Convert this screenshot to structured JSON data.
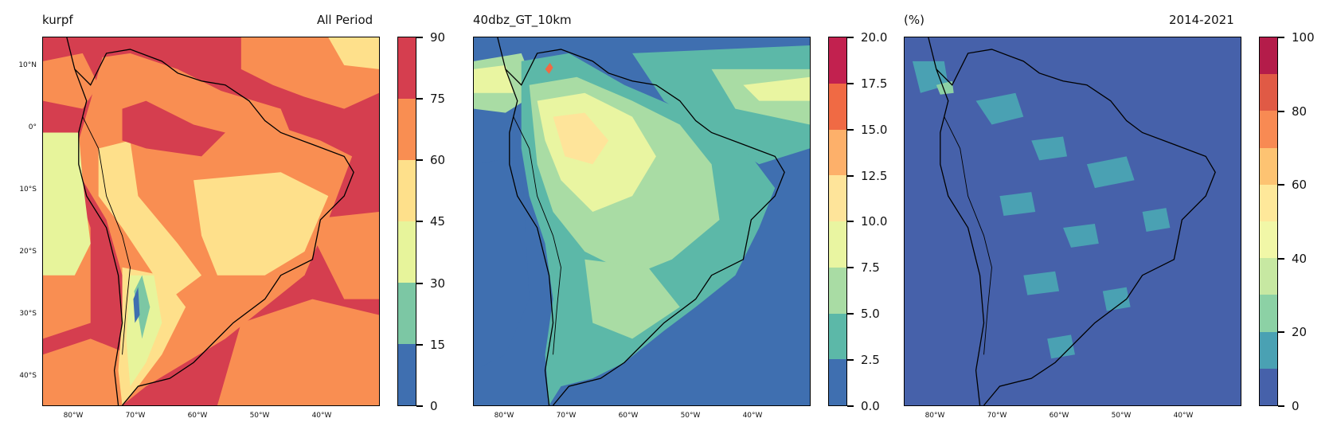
{
  "panels": [
    {
      "title_left": "kurpf",
      "title_right": "All Period",
      "colorbar": {
        "ticks": [
          "0",
          "15",
          "30",
          "45",
          "60",
          "75",
          "90"
        ],
        "colors": [
          "#3f6fb0",
          "#7cc7a4",
          "#e7f49b",
          "#fee08b",
          "#f98e52",
          "#d53e4f"
        ]
      },
      "ocean_color": "#f46d43",
      "land_color": "#fee08b"
    },
    {
      "title_left": "40dbz_GT_10km",
      "title_right": "",
      "colorbar": {
        "ticks": [
          "0.0",
          "2.5",
          "5.0",
          "7.5",
          "10.0",
          "12.5",
          "15.0",
          "17.5",
          "20.0"
        ],
        "colors": [
          "#3f6fb0",
          "#5cb8a8",
          "#a9dca4",
          "#e9f5a1",
          "#fee49a",
          "#fdb06a",
          "#f06a44",
          "#c2214f"
        ]
      },
      "ocean_color": "#3f6fb0",
      "land_color": "#8fd0a4"
    },
    {
      "title_left": "(%)",
      "title_right": "2014-2021",
      "colorbar": {
        "ticks": [
          "0",
          "20",
          "40",
          "60",
          "80",
          "100"
        ],
        "colors": [
          "#4661aa",
          "#4aa1b3",
          "#8cd1a5",
          "#c7e8a2",
          "#f1f7a7",
          "#fee89a",
          "#fdc372",
          "#f88a53",
          "#e05a45",
          "#b41c4a"
        ]
      },
      "ocean_color": "#4661aa",
      "land_color": "#4661aa"
    }
  ],
  "lat_labels": [
    "10°N",
    "0°",
    "10°S",
    "20°S",
    "30°S",
    "40°S"
  ],
  "lon_labels": [
    "80°W",
    "70°W",
    "60°W",
    "50°W",
    "40°W"
  ],
  "icons": [
    "south-america-coastline"
  ]
}
